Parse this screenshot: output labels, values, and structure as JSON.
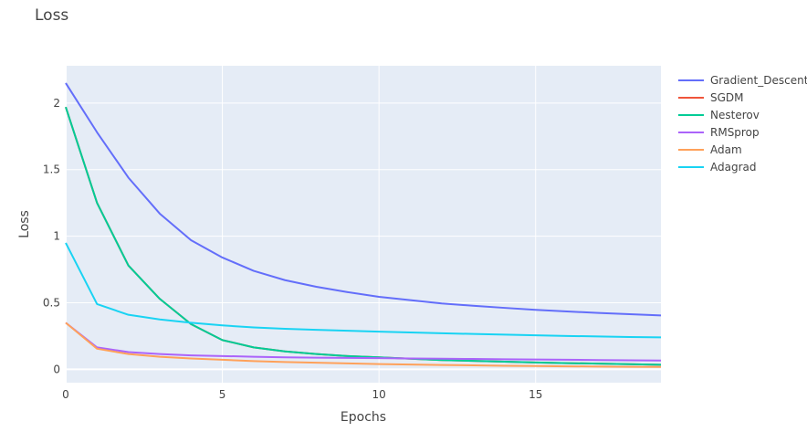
{
  "chart_data": {
    "type": "line",
    "title": "Loss",
    "xlabel": "Epochs",
    "ylabel": "Loss",
    "xlim": [
      0,
      19
    ],
    "ylim": [
      -0.1,
      2.28
    ],
    "xticks": [
      0,
      5,
      10,
      15
    ],
    "xtick_labels": [
      "0",
      "5",
      "10",
      "15"
    ],
    "yticks": [
      0,
      0.5,
      1,
      1.5,
      2
    ],
    "ytick_labels": [
      "0",
      "0.5",
      "1",
      "1.5",
      "2"
    ],
    "grid": true,
    "legend_position": "right",
    "x": [
      0,
      1,
      2,
      3,
      4,
      5,
      6,
      7,
      8,
      9,
      10,
      11,
      12,
      13,
      14,
      15,
      16,
      17,
      18,
      19
    ],
    "series": [
      {
        "name": "Gradient_Descent",
        "color": "#636efa",
        "values": [
          2.15,
          1.78,
          1.44,
          1.17,
          0.97,
          0.84,
          0.74,
          0.67,
          0.62,
          0.58,
          0.545,
          0.52,
          0.495,
          0.478,
          0.462,
          0.447,
          0.435,
          0.424,
          0.414,
          0.405
        ]
      },
      {
        "name": "SGDM",
        "color": "#ef553b",
        "values": [
          1.97,
          1.25,
          0.78,
          0.53,
          0.34,
          0.22,
          0.165,
          0.135,
          0.115,
          0.1,
          0.09,
          0.08,
          0.07,
          0.064,
          0.058,
          0.052,
          0.047,
          0.043,
          0.039,
          0.035
        ]
      },
      {
        "name": "Nesterov",
        "color": "#00cc96",
        "values": [
          1.97,
          1.25,
          0.78,
          0.53,
          0.34,
          0.22,
          0.165,
          0.135,
          0.115,
          0.1,
          0.09,
          0.08,
          0.07,
          0.064,
          0.058,
          0.052,
          0.047,
          0.043,
          0.039,
          0.035
        ]
      },
      {
        "name": "RMSprop",
        "color": "#ab63fa",
        "values": [
          0.35,
          0.165,
          0.13,
          0.115,
          0.105,
          0.1,
          0.095,
          0.09,
          0.088,
          0.086,
          0.084,
          0.082,
          0.08,
          0.078,
          0.076,
          0.074,
          0.072,
          0.07,
          0.068,
          0.066
        ]
      },
      {
        "name": "Adam",
        "color": "#ffa15a",
        "values": [
          0.35,
          0.155,
          0.115,
          0.095,
          0.082,
          0.072,
          0.062,
          0.055,
          0.05,
          0.045,
          0.04,
          0.036,
          0.033,
          0.03,
          0.027,
          0.025,
          0.023,
          0.021,
          0.019,
          0.018
        ]
      },
      {
        "name": "Adagrad",
        "color": "#19d3f3",
        "values": [
          0.95,
          0.49,
          0.41,
          0.375,
          0.35,
          0.33,
          0.315,
          0.305,
          0.297,
          0.29,
          0.283,
          0.277,
          0.271,
          0.266,
          0.261,
          0.256,
          0.251,
          0.247,
          0.243,
          0.24
        ]
      }
    ]
  }
}
